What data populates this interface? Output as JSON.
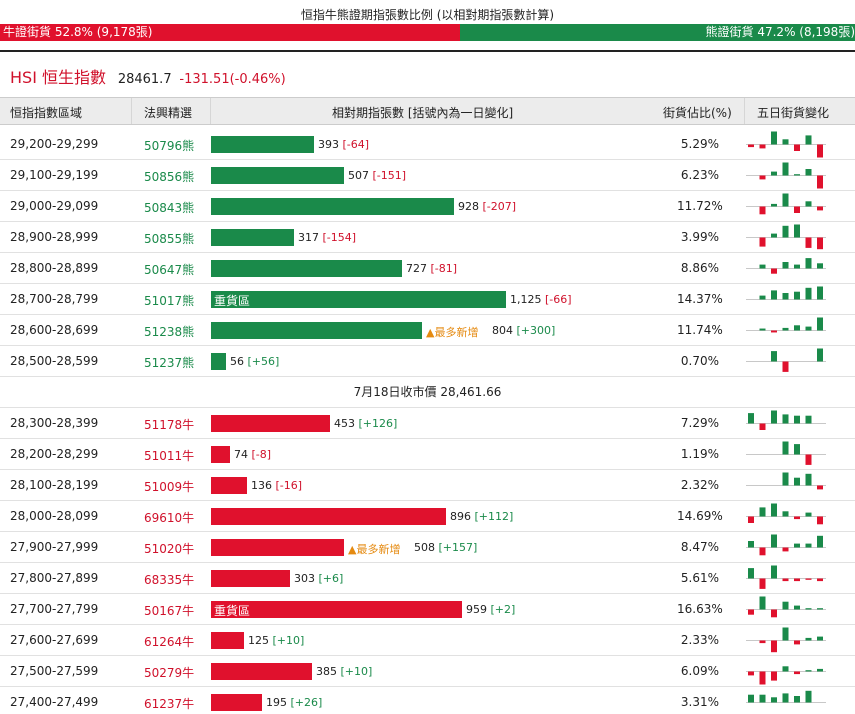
{
  "ratio": {
    "title": "恒指牛熊證期指張數比例 (以相對期指張數計算)",
    "bull_label": "牛證街貨 52.8% (9,178張)",
    "bear_label": "熊證街貨 47.2% (8,198張)",
    "bull_pct": 52.8,
    "bear_pct": 47.2,
    "colors": {
      "bull": "#e0112d",
      "bear": "#1a8a4a"
    }
  },
  "index": {
    "name": "HSI 恒生指數",
    "price": "28461.7",
    "change": "-131.51(-0.46%)"
  },
  "headers": {
    "range": "恒指指數區域",
    "pick": "法興精選",
    "contracts": "相對期指張數 [括號內為一日變化]",
    "share": "街貨佔比(%)",
    "five_day": "五日街貨變化"
  },
  "close_label": "7月18日收市價 28,461.66",
  "heavy_label": "重貨區",
  "newest_label": "▲最多新增",
  "bear_rows": [
    {
      "range": "29,200-29,299",
      "code": "50796熊",
      "contracts": 393,
      "contracts_text": "393",
      "change": "[-64]",
      "sign": "neg",
      "share": "5.29%",
      "heavy": false,
      "newest": false,
      "spark": [
        -0.2,
        -0.3,
        1,
        0.4,
        -0.5,
        0.7,
        -1
      ]
    },
    {
      "range": "29,100-29,199",
      "code": "50856熊",
      "contracts": 507,
      "contracts_text": "507",
      "change": "[-151]",
      "sign": "neg",
      "share": "6.23%",
      "heavy": false,
      "newest": false,
      "spark": [
        0,
        -0.3,
        0.3,
        1,
        0.1,
        0.5,
        -1
      ]
    },
    {
      "range": "29,000-29,099",
      "code": "50843熊",
      "contracts": 928,
      "contracts_text": "928",
      "change": "[-207]",
      "sign": "neg",
      "share": "11.72%",
      "heavy": false,
      "newest": false,
      "spark": [
        0,
        -0.6,
        0.2,
        1,
        -0.5,
        0.4,
        -0.3
      ]
    },
    {
      "range": "28,900-28,999",
      "code": "50855熊",
      "contracts": 317,
      "contracts_text": "317",
      "change": "[-154]",
      "sign": "neg",
      "share": "3.99%",
      "heavy": false,
      "newest": false,
      "spark": [
        0,
        -0.7,
        0.3,
        0.9,
        1,
        -0.8,
        -0.9
      ]
    },
    {
      "range": "28,800-28,899",
      "code": "50647熊",
      "contracts": 727,
      "contracts_text": "727",
      "change": "[-81]",
      "sign": "neg",
      "share": "8.86%",
      "heavy": false,
      "newest": false,
      "spark": [
        0,
        0.3,
        -0.4,
        0.5,
        0.3,
        0.8,
        0.4
      ]
    },
    {
      "range": "28,700-28,799",
      "code": "51017熊",
      "contracts": 1125,
      "contracts_text": "1,125",
      "change": "[-66]",
      "sign": "neg",
      "share": "14.37%",
      "heavy": true,
      "newest": false,
      "spark": [
        0,
        0.3,
        0.7,
        0.5,
        0.6,
        0.9,
        1
      ]
    },
    {
      "range": "28,600-28,699",
      "code": "51238熊",
      "contracts": 804,
      "contracts_text": "804",
      "change": "[+300]",
      "sign": "pos",
      "share": "11.74%",
      "heavy": false,
      "newest": true,
      "spark": [
        0,
        0.15,
        -0.15,
        0.2,
        0.4,
        0.3,
        1
      ]
    },
    {
      "range": "28,500-28,599",
      "code": "51237熊",
      "contracts": 56,
      "contracts_text": "56",
      "change": "[+56]",
      "sign": "pos",
      "share": "0.70%",
      "heavy": false,
      "newest": false,
      "spark": [
        0,
        0,
        0.8,
        -0.8,
        0,
        0,
        1
      ]
    }
  ],
  "bull_rows": [
    {
      "range": "28,300-28,399",
      "code": "51178牛",
      "contracts": 453,
      "contracts_text": "453",
      "change": "[+126]",
      "sign": "pos",
      "share": "7.29%",
      "heavy": false,
      "newest": false,
      "spark": [
        0.8,
        -0.5,
        1,
        0.7,
        0.6,
        0.6,
        0
      ]
    },
    {
      "range": "28,200-28,299",
      "code": "51011牛",
      "contracts": 74,
      "contracts_text": "74",
      "change": "[-8]",
      "sign": "neg",
      "share": "1.19%",
      "heavy": false,
      "newest": false,
      "spark": [
        0,
        0,
        0,
        1,
        0.8,
        -0.8,
        0
      ]
    },
    {
      "range": "28,100-28,199",
      "code": "51009牛",
      "contracts": 136,
      "contracts_text": "136",
      "change": "[-16]",
      "sign": "neg",
      "share": "2.32%",
      "heavy": false,
      "newest": false,
      "spark": [
        0,
        0,
        0,
        1,
        0.6,
        0.9,
        -0.3
      ]
    },
    {
      "range": "28,000-28,099",
      "code": "69610牛",
      "contracts": 896,
      "contracts_text": "896",
      "change": "[+112]",
      "sign": "pos",
      "share": "14.69%",
      "heavy": false,
      "newest": false,
      "spark": [
        -0.5,
        0.7,
        1,
        0.4,
        -0.2,
        0.3,
        -0.6
      ]
    },
    {
      "range": "27,900-27,999",
      "code": "51020牛",
      "contracts": 508,
      "contracts_text": "508",
      "change": "[+157]",
      "sign": "pos",
      "share": "8.47%",
      "heavy": false,
      "newest": true,
      "spark": [
        0.5,
        -0.6,
        1,
        -0.3,
        0.3,
        0.3,
        0.9
      ]
    },
    {
      "range": "27,800-27,899",
      "code": "68335牛",
      "contracts": 303,
      "contracts_text": "303",
      "change": "[+6]",
      "sign": "pos",
      "share": "5.61%",
      "heavy": false,
      "newest": false,
      "spark": [
        0.8,
        -0.8,
        1,
        -0.2,
        -0.2,
        -0.1,
        -0.2
      ]
    },
    {
      "range": "27,700-27,799",
      "code": "50167牛",
      "contracts": 959,
      "contracts_text": "959",
      "change": "[+2]",
      "sign": "pos",
      "share": "16.63%",
      "heavy": true,
      "newest": false,
      "spark": [
        -0.4,
        1,
        -0.6,
        0.6,
        0.3,
        0.1,
        0.1
      ]
    },
    {
      "range": "27,600-27,699",
      "code": "61264牛",
      "contracts": 125,
      "contracts_text": "125",
      "change": "[+10]",
      "sign": "pos",
      "share": "2.33%",
      "heavy": false,
      "newest": false,
      "spark": [
        0,
        -0.2,
        -0.9,
        1,
        -0.3,
        0.2,
        0.3
      ]
    },
    {
      "range": "27,500-27,599",
      "code": "50279牛",
      "contracts": 385,
      "contracts_text": "385",
      "change": "[+10]",
      "sign": "pos",
      "share": "6.09%",
      "heavy": false,
      "newest": false,
      "spark": [
        -0.3,
        -1,
        -0.7,
        0.4,
        -0.2,
        0.1,
        0.2
      ]
    },
    {
      "range": "27,400-27,499",
      "code": "61237牛",
      "contracts": 195,
      "contracts_text": "195",
      "change": "[+26]",
      "sign": "pos",
      "share": "3.31%",
      "heavy": false,
      "newest": false,
      "spark": [
        0.6,
        0.6,
        0.4,
        0.7,
        0.5,
        0.9,
        0
      ]
    }
  ]
}
